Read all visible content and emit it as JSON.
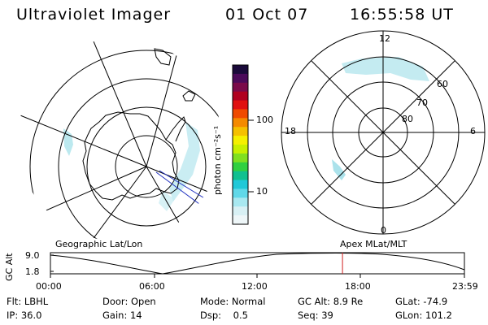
{
  "header": {
    "instrument": "Ultraviolet Imager",
    "date": "01 Oct 07",
    "time": "16:55:58 UT"
  },
  "colorbar": {
    "unit_label": "photon cm⁻²s⁻¹",
    "ticks": [
      "100",
      "10"
    ],
    "colors": [
      "#1a0a3a",
      "#4b0a5a",
      "#7a0a4a",
      "#b00020",
      "#e01010",
      "#f04a00",
      "#f58a00",
      "#f5c000",
      "#f5f000",
      "#c8f000",
      "#80e020",
      "#30d040",
      "#10c090",
      "#20c8d8",
      "#60d8e8",
      "#a8e8f0",
      "#d8f0f4",
      "#eef6f8"
    ]
  },
  "geo_map": {
    "label": "Geographic Lat/Lon"
  },
  "apex_map": {
    "label": "Apex MLat/MLT",
    "mlt_labels": {
      "top": "12",
      "left": "18",
      "right": "6",
      "bottom": "0"
    },
    "mlat_labels": [
      "60",
      "70",
      "80"
    ]
  },
  "altitude_plot": {
    "y_title": "GC Alt",
    "y_ticks": [
      "9.0",
      "1.8"
    ],
    "x_ticks": [
      "00:00",
      "06:00",
      "12:00",
      "18:00",
      "23:59"
    ],
    "marker_color": "#d02020",
    "current_time_hours": 16.93
  },
  "status": {
    "filter": {
      "label": "Flt:",
      "value": "LBHL"
    },
    "ip": {
      "label": "IP:",
      "value": "36.0"
    },
    "door": {
      "label": "Door:",
      "value": "Open"
    },
    "gain": {
      "label": "Gain:",
      "value": "14"
    },
    "mode": {
      "label": "Mode:",
      "value": "Normal"
    },
    "dsp": {
      "label": "Dsp:",
      "value": "0.5"
    },
    "gc_alt": {
      "label": "GC Alt:",
      "value": "8.9 Re"
    },
    "seq": {
      "label": "Seq:",
      "value": "39"
    },
    "glat": {
      "label": "GLat:",
      "value": "-74.9"
    },
    "glon": {
      "label": "GLon:",
      "value": "101.2"
    }
  }
}
